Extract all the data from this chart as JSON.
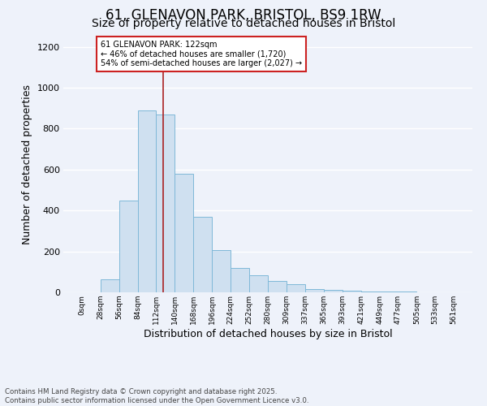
{
  "title_line1": "61, GLENAVON PARK, BRISTOL, BS9 1RW",
  "title_line2": "Size of property relative to detached houses in Bristol",
  "xlabel": "Distribution of detached houses by size in Bristol",
  "ylabel": "Number of detached properties",
  "bin_edges": [
    0,
    28,
    56,
    84,
    112,
    140,
    168,
    196,
    224,
    252,
    280,
    309,
    337,
    365,
    393,
    421,
    449,
    477,
    505,
    533,
    561
  ],
  "bar_heights": [
    0,
    65,
    450,
    890,
    870,
    580,
    370,
    205,
    120,
    85,
    55,
    40,
    15,
    10,
    8,
    5,
    3,
    2,
    1,
    0
  ],
  "bar_color": "#cfe0f0",
  "bar_edgecolor": "#7fb8d8",
  "vline_x": 122,
  "vline_color": "#aa2222",
  "ylim": [
    0,
    1250
  ],
  "yticks": [
    0,
    200,
    400,
    600,
    800,
    1000,
    1200
  ],
  "annotation_text": "61 GLENAVON PARK: 122sqm\n← 46% of detached houses are smaller (1,720)\n54% of semi-detached houses are larger (2,027) →",
  "annotation_box_facecolor": "#ffffff",
  "annotation_box_edgecolor": "#cc2222",
  "footnote_line1": "Contains HM Land Registry data © Crown copyright and database right 2025.",
  "footnote_line2": "Contains public sector information licensed under the Open Government Licence v3.0.",
  "background_color": "#eef2fa",
  "grid_color": "#ffffff",
  "title_fontsize": 12,
  "subtitle_fontsize": 10,
  "tick_labels": [
    "0sqm",
    "28sqm",
    "56sqm",
    "84sqm",
    "112sqm",
    "140sqm",
    "168sqm",
    "196sqm",
    "224sqm",
    "252sqm",
    "280sqm",
    "309sqm",
    "337sqm",
    "365sqm",
    "393sqm",
    "421sqm",
    "449sqm",
    "477sqm",
    "505sqm",
    "533sqm",
    "561sqm"
  ]
}
